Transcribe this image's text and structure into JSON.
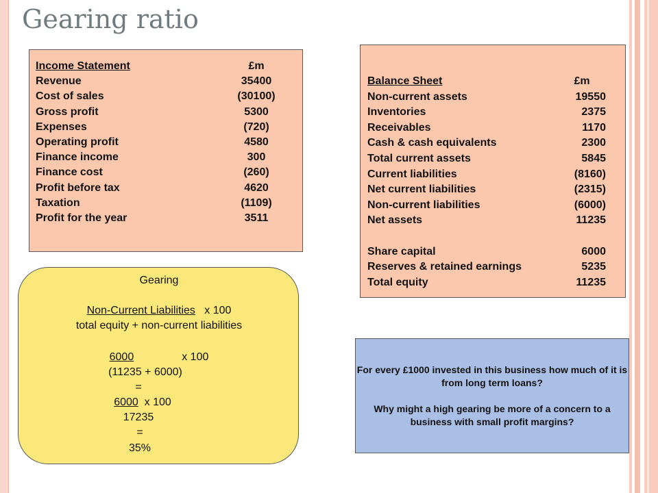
{
  "slide": {
    "title": "Gearing ratio"
  },
  "income_statement": {
    "header": {
      "label": "Income Statement",
      "unit": "£m"
    },
    "rows": [
      {
        "label": "Revenue",
        "value": "35400"
      },
      {
        "label": "Cost of sales",
        "value": "(30100)"
      },
      {
        "label": "Gross profit",
        "value": "5300"
      },
      {
        "label": "Expenses",
        "value": "(720)"
      },
      {
        "label": "Operating profit",
        "value": "4580"
      },
      {
        "label": "Finance income",
        "value": "300"
      },
      {
        "label": "Finance cost",
        "value": "(260)"
      },
      {
        "label": "Profit before tax",
        "value": "4620"
      },
      {
        "label": "Taxation",
        "value": "(1109)"
      },
      {
        "label": "Profit for the year",
        "value": "3511"
      }
    ]
  },
  "balance_sheet": {
    "header": {
      "label": "Balance Sheet",
      "unit": "£m"
    },
    "rows": [
      {
        "label": "Non-current assets",
        "value": "19550"
      },
      {
        "label": "Inventories",
        "value": "2375"
      },
      {
        "label": "Receivables",
        "value": "1170"
      },
      {
        "label": "Cash & cash equivalents",
        "value": "2300"
      },
      {
        "label": "Total current assets",
        "value": "5845"
      },
      {
        "label": "Current liabilities",
        "value": "(8160)"
      },
      {
        "label": "Net current liabilities",
        "value": "(2315)"
      },
      {
        "label": "Non-current liabilities",
        "value": "(6000)"
      },
      {
        "label": "Net assets",
        "value": "11235"
      }
    ],
    "equity_rows": [
      {
        "label": "Share capital",
        "value": "6000"
      },
      {
        "label": "Reserves & retained earnings",
        "value": "5235"
      },
      {
        "label": "Total equity",
        "value": "11235"
      }
    ]
  },
  "gearing": {
    "heading": "Gearing",
    "formula_numerator": "Non-Current Liabilities",
    "formula_multiplier": "x 100",
    "formula_denominator": "total equity + non-current liabilities",
    "calc_numerator": "6000",
    "calc_multiplier": "x 100",
    "calc_denominator": "(11235 + 6000)",
    "equals_1": "=",
    "simplified_numerator": "6000",
    "simplified_multiplier": "x 100",
    "simplified_denominator": "17235",
    "equals_2": "=",
    "result": "35%"
  },
  "questions": {
    "q1": "For every £1000 invested in this business how much of it is from long term loans?",
    "q2": "Why might a high gearing be more of a concern to a business with small profit margins?"
  },
  "colors": {
    "statement_fill": "#fcc8ad",
    "gearing_fill": "#fbe87a",
    "question_fill": "#aabfe6",
    "title_text": "#707b80"
  }
}
